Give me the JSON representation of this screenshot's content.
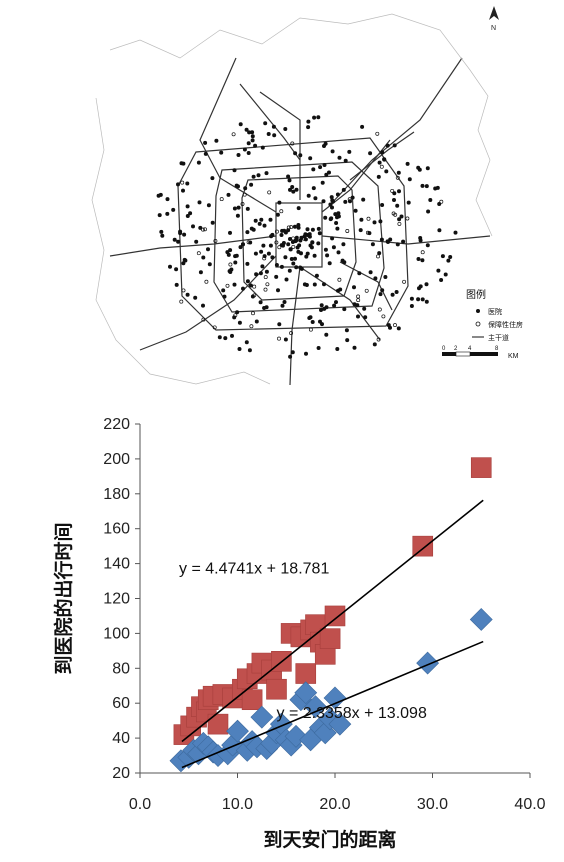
{
  "map": {
    "north_label": "N",
    "legend_title": "图例",
    "legend_items": [
      {
        "label": "医院",
        "marker": "filled-dot"
      },
      {
        "label": "保障性住房",
        "marker": "hollow-dot"
      },
      {
        "label": "主干道",
        "marker": "line"
      }
    ],
    "scale_ticks": [
      "0",
      "2",
      "4",
      "8"
    ],
    "scale_unit": "KM"
  },
  "chart_data": {
    "type": "scatter",
    "xlabel": "到天安门的距离",
    "ylabel": "到医院的出行时间",
    "xlim": [
      0,
      40
    ],
    "ylim": [
      20,
      220
    ],
    "xticks": [
      "0.0",
      "10.0",
      "20.0",
      "30.0",
      "40.0"
    ],
    "yticks": [
      "20",
      "40",
      "60",
      "80",
      "100",
      "120",
      "140",
      "160",
      "180",
      "200",
      "220"
    ],
    "grid": false,
    "colors": {
      "red_series": "#c0504d",
      "blue_series": "#4f81bd",
      "trendline": "#000000"
    },
    "series": [
      {
        "marker": "square",
        "color": "#c0504d",
        "trendline": {
          "slope": 4.4741,
          "intercept": 18.781,
          "label": "y = 4.4741x + 18.781"
        },
        "points": [
          [
            4.5,
            42
          ],
          [
            5.2,
            47
          ],
          [
            5.8,
            52
          ],
          [
            6.3,
            58
          ],
          [
            6.8,
            55
          ],
          [
            7.0,
            62
          ],
          [
            7.5,
            64
          ],
          [
            8.0,
            48
          ],
          [
            8.5,
            65
          ],
          [
            9.5,
            63
          ],
          [
            10.5,
            68
          ],
          [
            11.0,
            74
          ],
          [
            11.5,
            62
          ],
          [
            12.0,
            77
          ],
          [
            12.5,
            83
          ],
          [
            13.5,
            79
          ],
          [
            14.0,
            68
          ],
          [
            14.5,
            84
          ],
          [
            15.5,
            100
          ],
          [
            16.5,
            98
          ],
          [
            17.0,
            77
          ],
          [
            17.5,
            102
          ],
          [
            18.0,
            105
          ],
          [
            18.5,
            95
          ],
          [
            19.0,
            88
          ],
          [
            19.5,
            97
          ],
          [
            20.0,
            110
          ],
          [
            29.0,
            150
          ],
          [
            35.0,
            195
          ]
        ]
      },
      {
        "marker": "diamond",
        "color": "#4f81bd",
        "trendline": {
          "slope": 2.3358,
          "intercept": 13.098,
          "label": "y = 2.3358x + 13.098"
        },
        "points": [
          [
            4.2,
            27
          ],
          [
            5.0,
            29
          ],
          [
            5.5,
            33
          ],
          [
            6.0,
            31
          ],
          [
            6.5,
            37
          ],
          [
            7.0,
            35
          ],
          [
            7.5,
            32
          ],
          [
            8.0,
            30
          ],
          [
            9.0,
            31
          ],
          [
            9.5,
            36
          ],
          [
            10.0,
            44
          ],
          [
            11.0,
            33
          ],
          [
            11.5,
            38
          ],
          [
            12.0,
            35
          ],
          [
            12.5,
            52
          ],
          [
            13.0,
            34
          ],
          [
            13.5,
            37
          ],
          [
            14.0,
            43
          ],
          [
            14.5,
            48
          ],
          [
            15.0,
            39
          ],
          [
            15.5,
            36
          ],
          [
            16.0,
            41
          ],
          [
            16.5,
            62
          ],
          [
            17.0,
            66
          ],
          [
            17.5,
            39
          ],
          [
            18.0,
            58
          ],
          [
            18.5,
            46
          ],
          [
            19.0,
            43
          ],
          [
            19.5,
            51
          ],
          [
            20.0,
            63
          ],
          [
            20.5,
            48
          ],
          [
            29.5,
            83
          ],
          [
            35.0,
            108
          ]
        ]
      }
    ]
  }
}
